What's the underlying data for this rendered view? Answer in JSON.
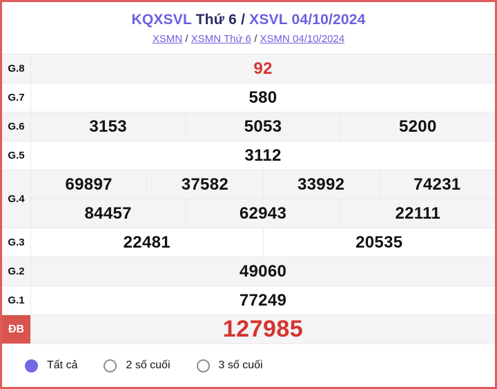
{
  "header": {
    "title_kq": "KQXSVL",
    "title_day": " Thứ 6 / ",
    "title_date": "XSVL 04/10/2024",
    "breadcrumb_separator": " / ",
    "breadcrumbs": [
      {
        "label": "XSMN"
      },
      {
        "label": "XSMN Thứ 6"
      },
      {
        "label": "XSMN 04/10/2024"
      }
    ]
  },
  "results": {
    "rows": [
      {
        "label": "G.8",
        "values": [
          "92"
        ],
        "highlight": true
      },
      {
        "label": "G.7",
        "values": [
          "580"
        ]
      },
      {
        "label": "G.6",
        "values": [
          "3153",
          "5053",
          "5200"
        ]
      },
      {
        "label": "G.5",
        "values": [
          "3112"
        ]
      },
      {
        "label": "G.4",
        "grid": [
          [
            "69897",
            "37582",
            "33992",
            "74231"
          ],
          [
            "84457",
            "62943",
            "22111"
          ]
        ]
      },
      {
        "label": "G.3",
        "values": [
          "22481",
          "20535"
        ]
      },
      {
        "label": "G.2",
        "values": [
          "49060"
        ]
      },
      {
        "label": "G.1",
        "values": [
          "77249"
        ]
      },
      {
        "label": "ĐB",
        "values": [
          "127985"
        ],
        "special": true
      }
    ]
  },
  "filters": {
    "options": [
      {
        "label": "Tất cả",
        "selected": true
      },
      {
        "label": "2 số cuối",
        "selected": false
      },
      {
        "label": "3 số cuối",
        "selected": false
      }
    ]
  },
  "colors": {
    "accent_purple": "#6c5fe0",
    "title_navy": "#2b2b66",
    "value_red": "#d5342e",
    "special_badge_red": "#d9534f",
    "outer_border_red": "#e05c5c",
    "row_alt_bg": "#f4f4f6",
    "radio_selected_purple": "#7468e6"
  }
}
